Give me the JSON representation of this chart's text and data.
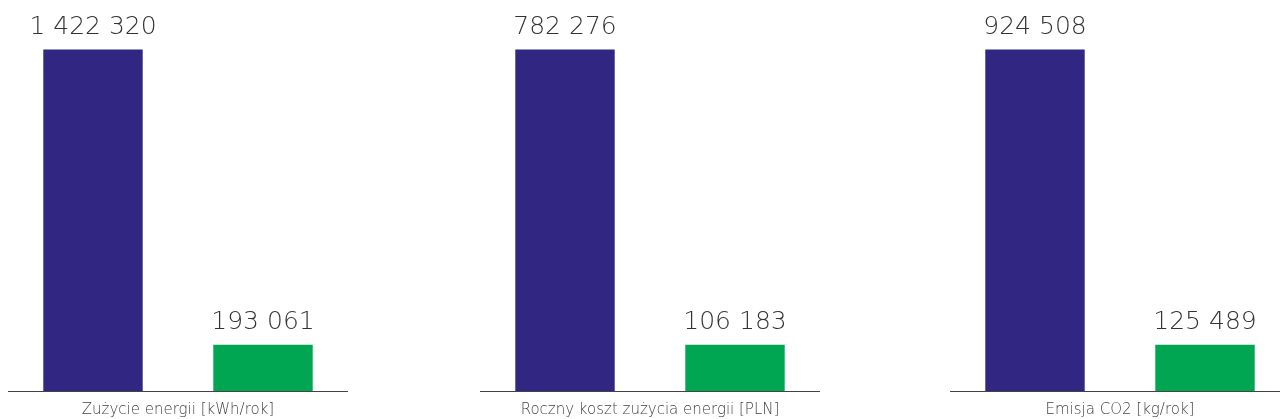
{
  "chart_data": [
    {
      "type": "bar",
      "xlabel": "Zużycie energii [kWh/rok]",
      "categories": [
        null,
        null
      ],
      "values": [
        1422320,
        193061
      ],
      "colors": [
        "#312783",
        "#00a651"
      ],
      "value_labels": [
        "1 422 320",
        "193 061"
      ],
      "tick_labels": false
    },
    {
      "type": "bar",
      "xlabel": "Roczny koszt zużycia energii [PLN]",
      "categories": [
        null,
        null
      ],
      "values": [
        782276,
        106183
      ],
      "colors": [
        "#312783",
        "#00a651"
      ],
      "value_labels": [
        "782 276",
        "106 183"
      ],
      "tick_labels": false
    },
    {
      "type": "bar",
      "xlabel": "Emisja CO2 [kg/rok]",
      "categories": [
        null,
        null
      ],
      "values": [
        924508,
        125489
      ],
      "colors": [
        "#312783",
        "#00a651"
      ],
      "value_labels": [
        "924 508",
        "125 489"
      ],
      "tick_labels": false
    }
  ]
}
